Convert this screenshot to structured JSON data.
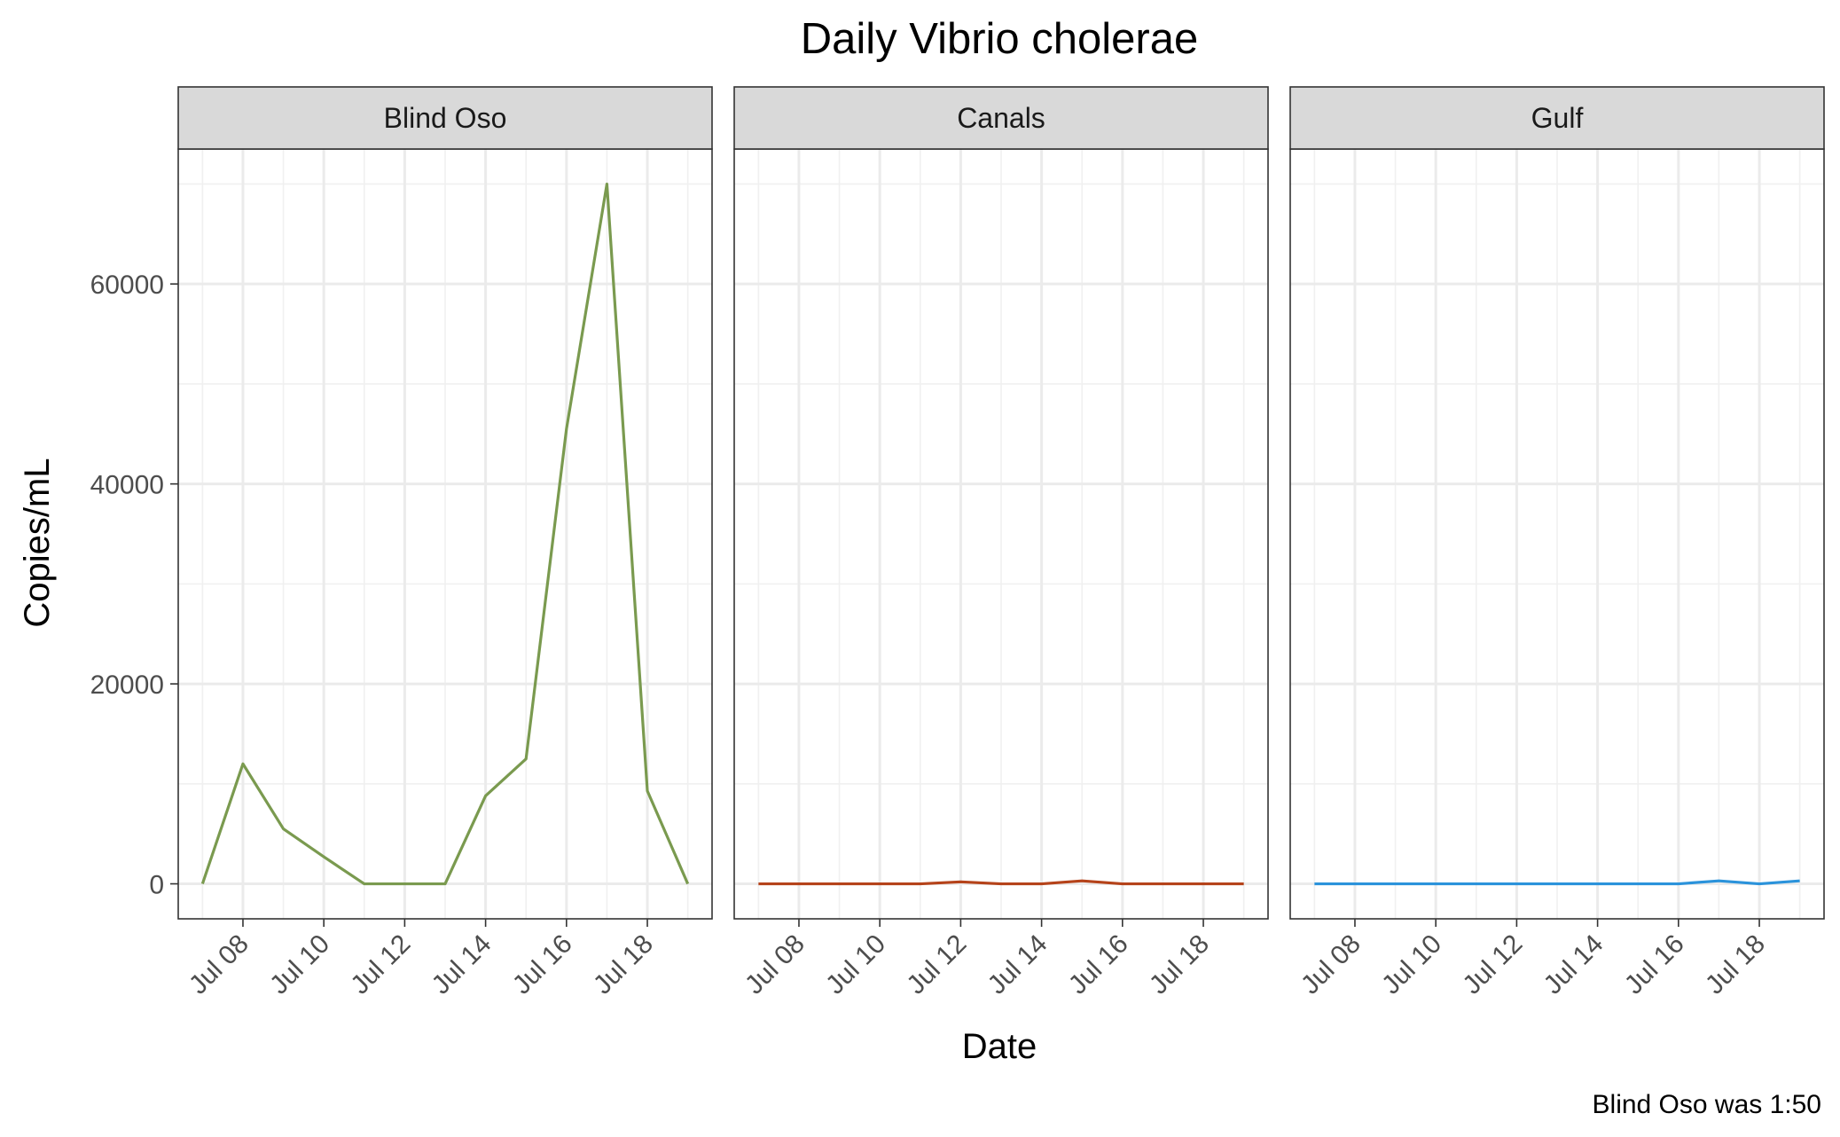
{
  "chart_data": {
    "type": "line",
    "title": "Daily Vibrio cholerae",
    "xlabel": "Date",
    "ylabel": "Copies/mL",
    "caption": "Blind Oso was 1:50",
    "x": [
      "2024-07-07",
      "2024-07-08",
      "2024-07-09",
      "2024-07-10",
      "2024-07-11",
      "2024-07-12",
      "2024-07-13",
      "2024-07-14",
      "2024-07-15",
      "2024-07-16",
      "2024-07-17",
      "2024-07-18",
      "2024-07-19"
    ],
    "xlim": [
      "2024-07-06.4",
      "2024-07-19.6"
    ],
    "x_ticks": [
      "2024-07-08",
      "2024-07-10",
      "2024-07-12",
      "2024-07-14",
      "2024-07-16",
      "2024-07-18"
    ],
    "x_tick_labels": [
      "Jul 08",
      "Jul 10",
      "Jul 12",
      "Jul 14",
      "Jul 16",
      "Jul 18"
    ],
    "ylim": [
      -3500,
      73500
    ],
    "y_ticks": [
      0,
      20000,
      40000,
      60000
    ],
    "y_tick_labels": [
      "0",
      "20000",
      "40000",
      "60000"
    ],
    "grid": true,
    "legend": "none",
    "facets": [
      {
        "name": "Blind Oso",
        "color": "#7a9a4f",
        "values": [
          0,
          12000,
          5500,
          2700,
          0,
          0,
          0,
          8800,
          12500,
          45500,
          70000,
          9300,
          0
        ]
      },
      {
        "name": "Canals",
        "color": "#b5431a",
        "values": [
          0,
          0,
          0,
          0,
          0,
          200,
          0,
          0,
          300,
          0,
          0,
          0,
          0
        ]
      },
      {
        "name": "Gulf",
        "color": "#2b93db",
        "values": [
          0,
          0,
          0,
          0,
          0,
          0,
          0,
          0,
          0,
          0,
          300,
          0,
          300
        ]
      }
    ]
  }
}
